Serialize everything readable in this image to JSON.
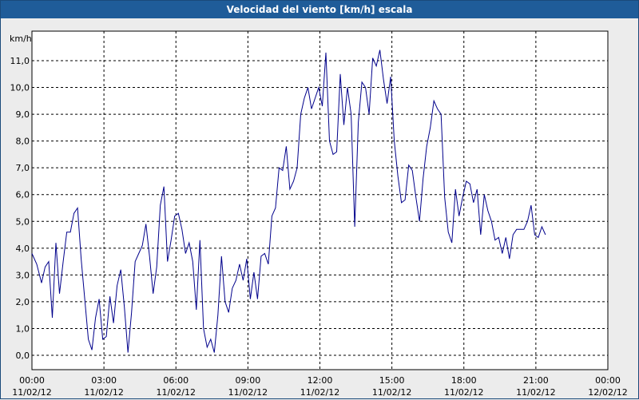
{
  "window": {
    "title": "Velocidad del viento [km/h] escala"
  },
  "chart_data": {
    "type": "line",
    "title": "Velocidad del viento [km/h] escala",
    "ylabel": "km/h",
    "xlabel": "",
    "ylim": [
      -0.5,
      12.0
    ],
    "y_ticks": [
      0,
      1,
      2,
      3,
      4,
      5,
      6,
      7,
      8,
      9,
      10,
      11
    ],
    "y_tick_labels": [
      "0,0",
      "1,0",
      "2,0",
      "3,0",
      "4,0",
      "5,0",
      "6,0",
      "7,0",
      "8,0",
      "9,0",
      "10,0",
      "11,0"
    ],
    "x_ticks_hours": [
      0,
      3,
      6,
      9,
      12,
      15,
      18,
      21,
      24
    ],
    "x_tick_labels": [
      {
        "time": "00:00",
        "date": "11/02/12"
      },
      {
        "time": "03:00",
        "date": "11/02/12"
      },
      {
        "time": "06:00",
        "date": "11/02/12"
      },
      {
        "time": "09:00",
        "date": "11/02/12"
      },
      {
        "time": "12:00",
        "date": "11/02/12"
      },
      {
        "time": "15:00",
        "date": "11/02/12"
      },
      {
        "time": "18:00",
        "date": "11/02/12"
      },
      {
        "time": "21:00",
        "date": "11/02/12"
      },
      {
        "time": "00:00",
        "date": "12/02/12"
      }
    ],
    "grid": true,
    "line_color": "#00008b",
    "series": [
      {
        "points": [
          [
            0.0,
            3.8
          ],
          [
            0.2,
            3.4
          ],
          [
            0.4,
            2.7
          ],
          [
            0.55,
            3.3
          ],
          [
            0.7,
            3.5
          ],
          [
            0.85,
            1.4
          ],
          [
            1.0,
            4.2
          ],
          [
            1.15,
            2.3
          ],
          [
            1.3,
            3.5
          ],
          [
            1.45,
            4.6
          ],
          [
            1.6,
            4.6
          ],
          [
            1.75,
            5.3
          ],
          [
            1.9,
            5.5
          ],
          [
            2.05,
            3.6
          ],
          [
            2.2,
            2.1
          ],
          [
            2.35,
            0.6
          ],
          [
            2.5,
            0.2
          ],
          [
            2.65,
            1.4
          ],
          [
            2.8,
            2.1
          ],
          [
            2.95,
            0.6
          ],
          [
            3.1,
            0.7
          ],
          [
            3.25,
            2.2
          ],
          [
            3.4,
            1.2
          ],
          [
            3.55,
            2.6
          ],
          [
            3.7,
            3.2
          ],
          [
            3.85,
            1.8
          ],
          [
            4.0,
            0.1
          ],
          [
            4.15,
            1.6
          ],
          [
            4.3,
            3.5
          ],
          [
            4.45,
            3.8
          ],
          [
            4.6,
            4.1
          ],
          [
            4.75,
            4.9
          ],
          [
            4.9,
            3.7
          ],
          [
            5.05,
            2.3
          ],
          [
            5.2,
            3.3
          ],
          [
            5.35,
            5.6
          ],
          [
            5.5,
            6.3
          ],
          [
            5.65,
            3.5
          ],
          [
            5.8,
            4.3
          ],
          [
            5.95,
            5.2
          ],
          [
            6.1,
            5.3
          ],
          [
            6.25,
            4.7
          ],
          [
            6.4,
            3.8
          ],
          [
            6.55,
            4.2
          ],
          [
            6.7,
            3.5
          ],
          [
            6.85,
            1.7
          ],
          [
            7.0,
            4.3
          ],
          [
            7.15,
            1.0
          ],
          [
            7.3,
            0.3
          ],
          [
            7.45,
            0.6
          ],
          [
            7.6,
            0.1
          ],
          [
            7.75,
            1.5
          ],
          [
            7.9,
            3.7
          ],
          [
            8.05,
            2.0
          ],
          [
            8.2,
            1.6
          ],
          [
            8.35,
            2.5
          ],
          [
            8.5,
            2.8
          ],
          [
            8.65,
            3.4
          ],
          [
            8.8,
            2.8
          ],
          [
            8.95,
            3.6
          ],
          [
            9.1,
            2.1
          ],
          [
            9.25,
            3.1
          ],
          [
            9.4,
            2.1
          ],
          [
            9.55,
            3.7
          ],
          [
            9.7,
            3.8
          ],
          [
            9.85,
            3.4
          ],
          [
            10.0,
            5.2
          ],
          [
            10.15,
            5.5
          ],
          [
            10.3,
            7.0
          ],
          [
            10.45,
            6.9
          ],
          [
            10.6,
            7.8
          ],
          [
            10.75,
            6.2
          ],
          [
            10.9,
            6.5
          ],
          [
            11.05,
            7.0
          ],
          [
            11.2,
            9.0
          ],
          [
            11.35,
            9.6
          ],
          [
            11.5,
            10.0
          ],
          [
            11.65,
            9.2
          ],
          [
            11.8,
            9.6
          ],
          [
            11.95,
            10.0
          ],
          [
            12.1,
            9.3
          ],
          [
            12.25,
            11.3
          ],
          [
            12.4,
            8.0
          ],
          [
            12.55,
            7.5
          ],
          [
            12.7,
            7.6
          ],
          [
            12.85,
            10.5
          ],
          [
            13.0,
            8.6
          ],
          [
            13.15,
            10.0
          ],
          [
            13.3,
            9.0
          ],
          [
            13.45,
            4.8
          ],
          [
            13.6,
            8.7
          ],
          [
            13.75,
            10.2
          ],
          [
            13.9,
            10.0
          ],
          [
            14.05,
            9.0
          ],
          [
            14.2,
            11.1
          ],
          [
            14.35,
            10.8
          ],
          [
            14.5,
            11.4
          ],
          [
            14.65,
            10.3
          ],
          [
            14.8,
            9.4
          ],
          [
            14.95,
            10.4
          ],
          [
            15.1,
            8.0
          ],
          [
            15.25,
            6.7
          ],
          [
            15.4,
            5.7
          ],
          [
            15.55,
            5.8
          ],
          [
            15.7,
            7.1
          ],
          [
            15.85,
            6.9
          ],
          [
            16.0,
            5.9
          ],
          [
            16.15,
            5.0
          ],
          [
            16.3,
            6.6
          ],
          [
            16.45,
            7.8
          ],
          [
            16.6,
            8.5
          ],
          [
            16.75,
            9.5
          ],
          [
            16.9,
            9.2
          ],
          [
            17.05,
            9.0
          ],
          [
            17.2,
            5.9
          ],
          [
            17.35,
            4.6
          ],
          [
            17.5,
            4.2
          ],
          [
            17.65,
            6.2
          ],
          [
            17.8,
            5.2
          ],
          [
            17.95,
            5.9
          ],
          [
            18.1,
            6.5
          ],
          [
            18.25,
            6.4
          ],
          [
            18.4,
            5.7
          ],
          [
            18.55,
            6.2
          ],
          [
            18.7,
            4.5
          ],
          [
            18.85,
            6.0
          ],
          [
            19.0,
            5.4
          ],
          [
            19.15,
            5.0
          ],
          [
            19.3,
            4.3
          ],
          [
            19.45,
            4.4
          ],
          [
            19.6,
            3.8
          ],
          [
            19.75,
            4.4
          ],
          [
            19.9,
            3.6
          ],
          [
            20.05,
            4.5
          ],
          [
            20.2,
            4.7
          ],
          [
            20.35,
            4.7
          ],
          [
            20.5,
            4.7
          ],
          [
            20.65,
            5.0
          ],
          [
            20.8,
            5.6
          ],
          [
            20.95,
            4.5
          ],
          [
            21.1,
            4.4
          ],
          [
            21.25,
            4.8
          ],
          [
            21.4,
            4.5
          ]
        ]
      }
    ]
  }
}
